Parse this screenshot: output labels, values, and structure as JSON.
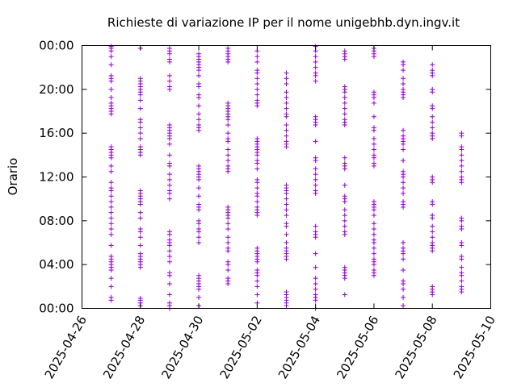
{
  "chart_data": {
    "type": "scatter",
    "title": "Richieste di variazione IP per il nome unigebhb.dyn.ingv.it",
    "xlabel": "",
    "ylabel": "Orario",
    "x_axis": "date",
    "y_axis": "time-of-day",
    "xlim": [
      "2025-04-26",
      "2025-05-10"
    ],
    "ylim": [
      "00:00",
      "24:00"
    ],
    "x_ticks": [
      "2025-04-26",
      "2025-04-28",
      "2025-04-30",
      "2025-05-02",
      "2025-05-04",
      "2025-05-06",
      "2025-05-08",
      "2025-05-10"
    ],
    "y_ticks": [
      "00:00",
      "04:00",
      "08:00",
      "12:00",
      "16:00",
      "20:00",
      "00:00"
    ],
    "grid": false,
    "legend": "none",
    "marker": "plus",
    "color": "#9400d3",
    "series": [
      {
        "date": "2025-04-27",
        "times": [
          "00:45",
          "01:00",
          "02:00",
          "02:45",
          "03:30",
          "03:45",
          "04:00",
          "04:15",
          "04:30",
          "04:45",
          "05:45",
          "06:45",
          "07:15",
          "07:45",
          "08:15",
          "08:45",
          "09:15",
          "09:45",
          "10:15",
          "10:45",
          "11:00",
          "11:30",
          "12:30",
          "13:00",
          "13:45",
          "14:00",
          "14:15",
          "14:30",
          "14:45",
          "17:45",
          "18:00",
          "18:15",
          "18:30",
          "18:45",
          "19:15",
          "20:00",
          "20:45",
          "21:00",
          "21:15",
          "22:15",
          "23:00",
          "23:30",
          "23:45",
          "23:55"
        ]
      },
      {
        "date": "2025-04-28",
        "times": [
          "00:15",
          "00:30",
          "00:45",
          "00:55",
          "03:45",
          "04:00",
          "04:15",
          "04:30",
          "04:45",
          "05:00",
          "05:45",
          "06:30",
          "07:00",
          "07:15",
          "08:15",
          "08:45",
          "09:30",
          "09:45",
          "10:00",
          "10:15",
          "10:30",
          "10:45",
          "14:00",
          "14:15",
          "14:30",
          "14:45",
          "15:30",
          "16:00",
          "16:30",
          "17:00",
          "17:15",
          "18:15",
          "19:00",
          "19:30",
          "19:45",
          "20:00",
          "20:15",
          "20:30",
          "20:45",
          "21:00",
          "23:45"
        ]
      },
      {
        "date": "2025-04-29",
        "times": [
          "00:00",
          "00:15",
          "00:30",
          "01:15",
          "02:15",
          "03:00",
          "03:15",
          "04:15",
          "04:45",
          "05:15",
          "05:45",
          "06:00",
          "06:15",
          "06:45",
          "07:00",
          "10:00",
          "10:30",
          "10:45",
          "11:15",
          "11:45",
          "12:15",
          "13:00",
          "13:15",
          "14:00",
          "15:00",
          "15:30",
          "15:45",
          "16:00",
          "16:15",
          "16:30",
          "16:45",
          "20:00",
          "20:15",
          "20:45",
          "21:15",
          "22:30",
          "22:45",
          "23:15",
          "23:30",
          "23:45"
        ]
      },
      {
        "date": "2025-04-30",
        "times": [
          "00:15",
          "01:00",
          "01:45",
          "02:00",
          "02:15",
          "02:30",
          "02:45",
          "03:00",
          "06:00",
          "06:30",
          "07:00",
          "07:15",
          "07:45",
          "08:00",
          "09:00",
          "09:15",
          "09:30",
          "10:15",
          "11:00",
          "11:45",
          "12:00",
          "12:15",
          "12:30",
          "12:45",
          "13:00",
          "16:15",
          "16:30",
          "16:45",
          "17:15",
          "17:45",
          "18:30",
          "19:15",
          "19:30",
          "20:15",
          "20:30",
          "21:15",
          "21:45",
          "22:00",
          "22:15",
          "22:30",
          "22:45",
          "23:00",
          "23:15"
        ]
      },
      {
        "date": "2025-05-01",
        "times": [
          "02:15",
          "02:30",
          "02:45",
          "03:30",
          "04:00",
          "04:15",
          "05:15",
          "05:30",
          "06:00",
          "06:30",
          "07:15",
          "07:45",
          "08:15",
          "08:30",
          "08:45",
          "09:00",
          "09:15",
          "12:30",
          "12:45",
          "13:00",
          "13:30",
          "14:00",
          "14:30",
          "15:15",
          "15:30",
          "16:00",
          "16:45",
          "17:15",
          "17:30",
          "17:45",
          "18:00",
          "18:15",
          "18:30",
          "18:45",
          "22:30",
          "22:45",
          "23:00",
          "23:15",
          "23:30",
          "23:45"
        ]
      },
      {
        "date": "2025-05-02",
        "times": [
          "00:30",
          "01:15",
          "02:00",
          "02:30",
          "03:00",
          "03:15",
          "03:30",
          "04:15",
          "04:30",
          "04:45",
          "05:00",
          "05:15",
          "05:30",
          "08:30",
          "08:45",
          "09:00",
          "09:15",
          "09:45",
          "10:15",
          "10:30",
          "11:00",
          "11:30",
          "11:45",
          "12:45",
          "13:15",
          "13:30",
          "14:00",
          "14:15",
          "14:30",
          "14:45",
          "15:00",
          "15:15",
          "15:30",
          "18:30",
          "18:45",
          "19:00",
          "19:30",
          "20:00",
          "20:30",
          "21:00",
          "21:30",
          "21:45",
          "22:30",
          "23:00",
          "23:30"
        ]
      },
      {
        "date": "2025-05-03",
        "times": [
          "00:15",
          "00:30",
          "00:45",
          "01:00",
          "01:15",
          "01:30",
          "04:30",
          "04:45",
          "05:00",
          "05:15",
          "05:30",
          "06:00",
          "06:45",
          "07:30",
          "07:45",
          "08:30",
          "09:00",
          "09:30",
          "10:00",
          "10:30",
          "10:45",
          "11:00",
          "11:15",
          "14:45",
          "15:00",
          "15:15",
          "15:45",
          "16:15",
          "16:45",
          "17:30",
          "17:45",
          "18:15",
          "18:45",
          "19:15",
          "19:45",
          "20:30",
          "21:00",
          "21:30"
        ]
      },
      {
        "date": "2025-05-04",
        "times": [
          "00:00",
          "00:45",
          "01:00",
          "01:15",
          "01:45",
          "02:15",
          "02:45",
          "03:45",
          "05:00",
          "06:30",
          "06:45",
          "07:00",
          "07:30",
          "10:30",
          "10:45",
          "11:15",
          "11:45",
          "12:15",
          "12:45",
          "13:30",
          "13:45",
          "15:15",
          "16:45",
          "17:00",
          "17:15",
          "17:30",
          "20:45",
          "21:15",
          "21:30",
          "22:00",
          "22:30",
          "23:00",
          "23:30",
          "23:55"
        ]
      },
      {
        "date": "2025-05-05",
        "times": [
          "01:15",
          "02:45",
          "03:00",
          "03:15",
          "03:30",
          "03:45",
          "06:45",
          "07:00",
          "07:30",
          "08:00",
          "08:30",
          "09:00",
          "09:45",
          "10:00",
          "10:15",
          "11:15",
          "12:45",
          "13:00",
          "13:15",
          "13:45",
          "16:45",
          "17:00",
          "17:15",
          "17:45",
          "18:15",
          "18:45",
          "19:15",
          "19:45",
          "20:00",
          "20:15",
          "22:45",
          "23:00",
          "23:15",
          "23:30"
        ]
      },
      {
        "date": "2025-05-06",
        "times": [
          "03:00",
          "03:15",
          "03:30",
          "04:00",
          "04:15",
          "04:30",
          "05:00",
          "05:30",
          "06:00",
          "06:15",
          "06:45",
          "07:15",
          "07:45",
          "08:30",
          "09:00",
          "09:15",
          "09:30",
          "09:45",
          "13:00",
          "13:15",
          "13:45",
          "14:00",
          "14:30",
          "15:00",
          "15:30",
          "16:15",
          "16:30",
          "17:30",
          "18:45",
          "19:15",
          "19:30",
          "19:45",
          "23:00",
          "23:15",
          "23:30",
          "23:45"
        ]
      },
      {
        "date": "2025-05-07",
        "times": [
          "00:15",
          "01:00",
          "01:45",
          "02:15",
          "02:30",
          "03:30",
          "04:30",
          "05:00",
          "05:15",
          "05:30",
          "06:00",
          "09:15",
          "09:30",
          "09:45",
          "10:30",
          "11:00",
          "11:30",
          "12:00",
          "12:15",
          "12:30",
          "13:30",
          "14:30",
          "15:00",
          "15:15",
          "15:30",
          "15:45",
          "16:15",
          "19:15",
          "19:30",
          "19:45",
          "20:00",
          "20:30",
          "21:00",
          "21:45",
          "22:15",
          "22:30"
        ]
      },
      {
        "date": "2025-05-08",
        "times": [
          "01:15",
          "01:30",
          "01:45",
          "02:00",
          "05:15",
          "05:30",
          "05:45",
          "06:00",
          "06:30",
          "07:00",
          "07:30",
          "08:15",
          "08:30",
          "09:30",
          "09:45",
          "11:30",
          "11:45",
          "12:00",
          "15:30",
          "15:45",
          "16:00",
          "16:30",
          "17:00",
          "17:30",
          "18:15",
          "18:30",
          "19:45",
          "20:00",
          "21:15",
          "21:30",
          "21:45",
          "22:15"
        ]
      },
      {
        "date": "2025-05-09",
        "times": [
          "01:30",
          "01:45",
          "02:00",
          "02:30",
          "03:00",
          "03:15",
          "03:45",
          "04:30",
          "04:45",
          "05:45",
          "06:00",
          "07:15",
          "07:30",
          "08:00",
          "08:15",
          "11:30",
          "11:45",
          "12:00",
          "12:30",
          "13:00",
          "13:30",
          "14:00",
          "14:30",
          "14:45",
          "15:45",
          "16:00"
        ]
      }
    ]
  }
}
